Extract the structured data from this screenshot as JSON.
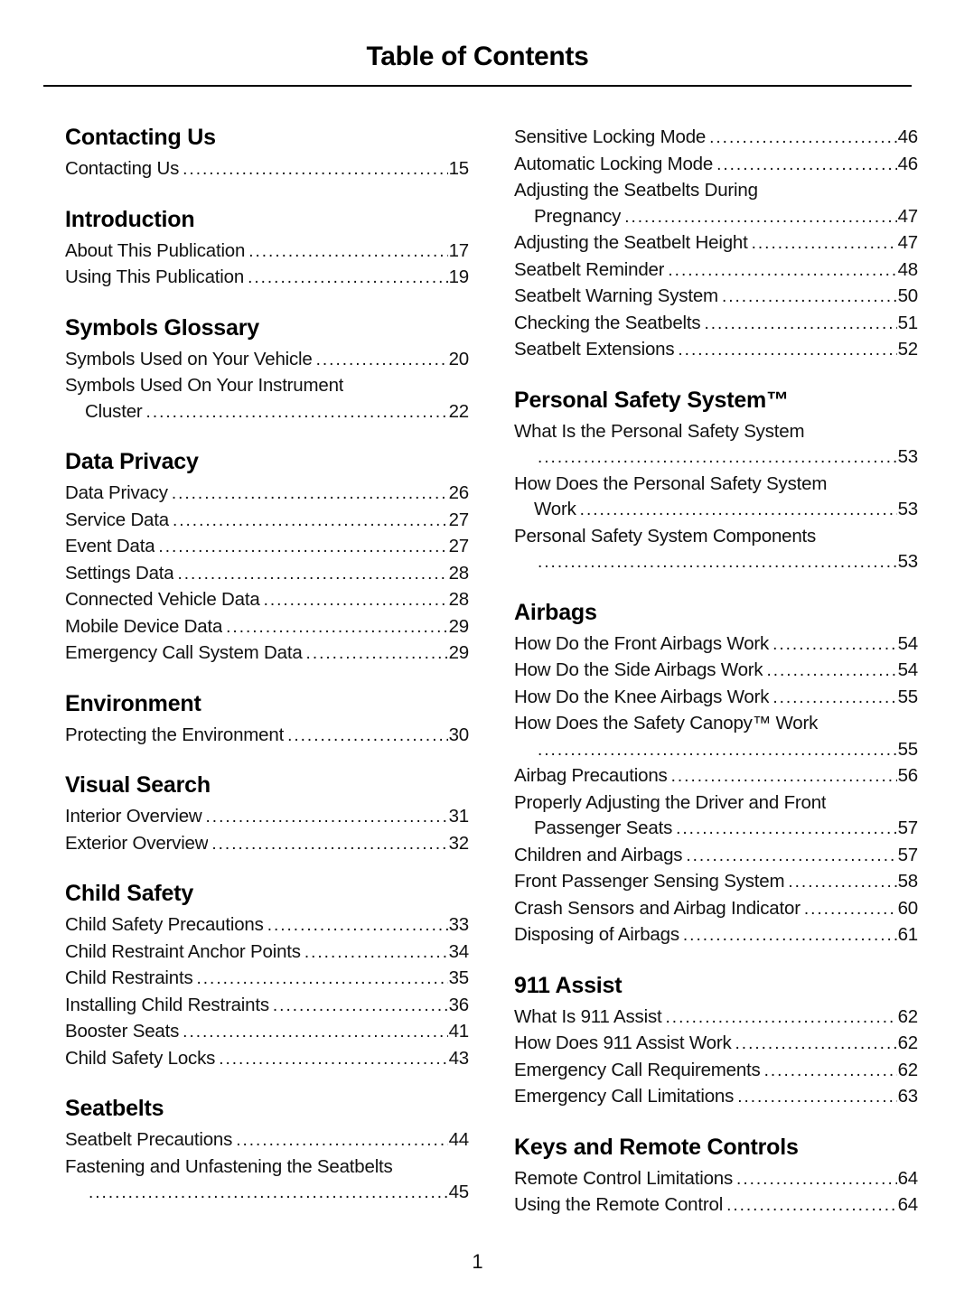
{
  "page": {
    "title": "Table of Contents",
    "page_number": "1"
  },
  "columns": [
    {
      "sections": [
        {
          "heading": "Contacting Us",
          "entries": [
            {
              "text": "Contacting Us",
              "page": "15"
            }
          ]
        },
        {
          "heading": "Introduction",
          "entries": [
            {
              "text": "About This Publication",
              "page": "17"
            },
            {
              "text": "Using This Publication",
              "page": "19"
            }
          ]
        },
        {
          "heading": "Symbols Glossary",
          "entries": [
            {
              "text": "Symbols Used on Your Vehicle",
              "page": "20"
            },
            {
              "text": "Symbols Used On Your Instrument",
              "text2": "Cluster",
              "page": "22"
            }
          ]
        },
        {
          "heading": "Data Privacy",
          "entries": [
            {
              "text": "Data Privacy",
              "page": "26"
            },
            {
              "text": "Service Data",
              "page": "27"
            },
            {
              "text": "Event Data",
              "page": "27"
            },
            {
              "text": "Settings Data",
              "page": "28"
            },
            {
              "text": "Connected Vehicle Data",
              "page": "28"
            },
            {
              "text": "Mobile Device Data",
              "page": "29"
            },
            {
              "text": "Emergency Call System Data",
              "page": "29"
            }
          ]
        },
        {
          "heading": "Environment",
          "entries": [
            {
              "text": "Protecting the Environment",
              "page": "30"
            }
          ]
        },
        {
          "heading": "Visual Search",
          "entries": [
            {
              "text": "Interior Overview",
              "page": "31"
            },
            {
              "text": "Exterior Overview",
              "page": "32"
            }
          ]
        },
        {
          "heading": "Child Safety",
          "entries": [
            {
              "text": "Child Safety Precautions",
              "page": "33"
            },
            {
              "text": "Child Restraint Anchor Points",
              "page": "34"
            },
            {
              "text": "Child Restraints",
              "page": "35"
            },
            {
              "text": "Installing Child Restraints",
              "page": "36"
            },
            {
              "text": "Booster Seats",
              "page": "41"
            },
            {
              "text": "Child Safety Locks",
              "page": "43"
            }
          ]
        },
        {
          "heading": "Seatbelts",
          "entries": [
            {
              "text": "Seatbelt Precautions",
              "page": "44"
            },
            {
              "text": "Fastening and Unfastening the Seatbelts",
              "text2": "",
              "page": "45"
            }
          ]
        }
      ]
    },
    {
      "sections": [
        {
          "heading": "",
          "entries": [
            {
              "text": "Sensitive Locking Mode",
              "page": "46"
            },
            {
              "text": "Automatic Locking Mode",
              "page": "46"
            },
            {
              "text": "Adjusting the Seatbelts During",
              "text2": "Pregnancy",
              "page": "47"
            },
            {
              "text": "Adjusting the Seatbelt Height",
              "page": "47"
            },
            {
              "text": "Seatbelt Reminder",
              "page": "48"
            },
            {
              "text": "Seatbelt Warning System",
              "page": "50"
            },
            {
              "text": "Checking the Seatbelts",
              "page": "51"
            },
            {
              "text": "Seatbelt Extensions",
              "page": "52"
            }
          ]
        },
        {
          "heading": "Personal Safety System™",
          "entries": [
            {
              "text": "What Is the Personal Safety System",
              "text2": "",
              "page": "53"
            },
            {
              "text": "How Does the Personal Safety System",
              "text2": "Work",
              "page": "53"
            },
            {
              "text": "Personal Safety System Components",
              "text2": "",
              "page": "53"
            }
          ]
        },
        {
          "heading": "Airbags",
          "entries": [
            {
              "text": "How Do the Front Airbags Work",
              "page": "54"
            },
            {
              "text": "How Do the Side Airbags Work",
              "page": "54"
            },
            {
              "text": "How Do the Knee Airbags Work",
              "page": "55"
            },
            {
              "text": "How Does the Safety Canopy™ Work",
              "text2": "",
              "page": "55"
            },
            {
              "text": "Airbag Precautions",
              "page": "56"
            },
            {
              "text": "Properly Adjusting the Driver and Front",
              "text2": "Passenger Seats",
              "page": "57"
            },
            {
              "text": "Children and Airbags",
              "page": "57"
            },
            {
              "text": "Front Passenger Sensing System",
              "page": "58"
            },
            {
              "text": "Crash Sensors and Airbag Indicator",
              "page": "60"
            },
            {
              "text": "Disposing of Airbags",
              "page": "61"
            }
          ]
        },
        {
          "heading": "911 Assist",
          "entries": [
            {
              "text": "What Is 911 Assist",
              "page": "62"
            },
            {
              "text": "How Does 911 Assist Work",
              "page": "62"
            },
            {
              "text": "Emergency Call Requirements",
              "page": "62"
            },
            {
              "text": "Emergency Call Limitations",
              "page": "63"
            }
          ]
        },
        {
          "heading": "Keys and Remote Controls",
          "entries": [
            {
              "text": "Remote Control Limitations",
              "page": "64"
            },
            {
              "text": "Using the Remote Control",
              "page": "64"
            }
          ]
        }
      ]
    }
  ]
}
